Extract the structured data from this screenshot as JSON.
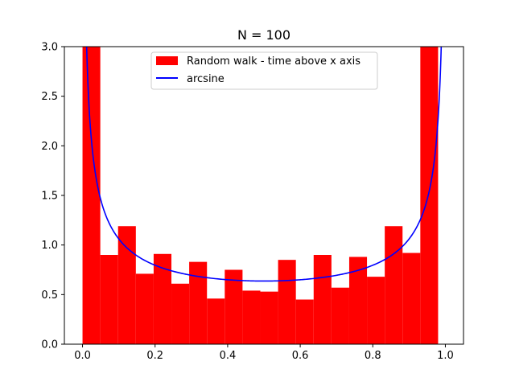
{
  "chart_data": {
    "type": "bar",
    "title": "N = 100",
    "xlabel": "",
    "ylabel": "",
    "xlim": [
      -0.05,
      1.05
    ],
    "ylim": [
      0,
      3
    ],
    "xticks": [
      0.0,
      0.2,
      0.4,
      0.6,
      0.8,
      1.0
    ],
    "xtick_labels": [
      "0.0",
      "0.2",
      "0.4",
      "0.6",
      "0.8",
      "1.0"
    ],
    "yticks": [
      0.0,
      0.5,
      1.0,
      1.5,
      2.0,
      2.5,
      3.0
    ],
    "ytick_labels": [
      "0.0",
      "0.5",
      "1.0",
      "1.5",
      "2.0",
      "2.5",
      "3.0"
    ],
    "grid": false,
    "legend_position": "top-center",
    "series": [
      {
        "name": "Random walk - time above x axis",
        "kind": "histogram",
        "color": "#ff0000",
        "bin_edges": [
          0.0,
          0.049,
          0.098,
          0.147,
          0.196,
          0.245,
          0.294,
          0.343,
          0.392,
          0.441,
          0.49,
          0.539,
          0.588,
          0.637,
          0.686,
          0.735,
          0.784,
          0.833,
          0.882,
          0.931,
          0.98
        ],
        "values": [
          3.0,
          0.9,
          1.19,
          0.71,
          0.91,
          0.61,
          0.83,
          0.46,
          0.75,
          0.54,
          0.53,
          0.85,
          0.45,
          0.9,
          0.57,
          0.88,
          0.68,
          1.19,
          0.92,
          3.0
        ]
      },
      {
        "name": "arcsine",
        "kind": "line",
        "color": "#0000ff",
        "function": "1/(pi*sqrt(x*(1-x)))",
        "x_range": [
          0.001,
          0.999
        ]
      }
    ]
  }
}
